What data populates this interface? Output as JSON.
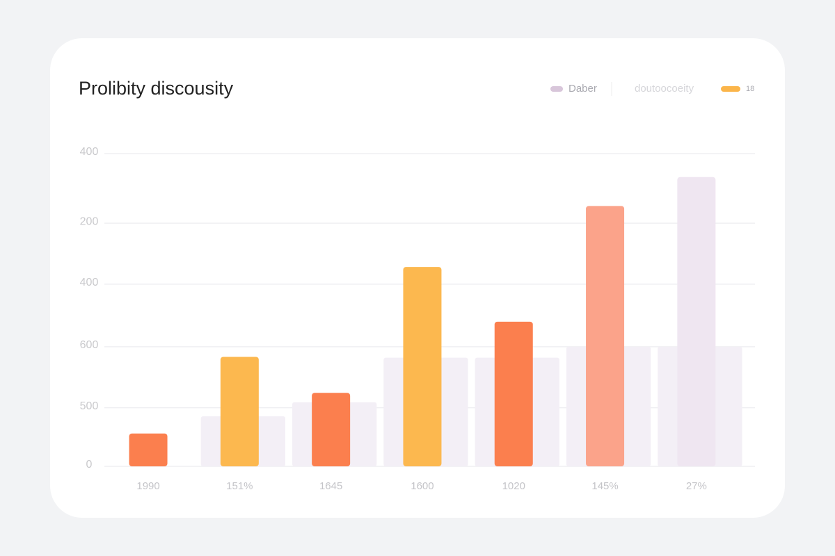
{
  "chart_data": {
    "type": "bar",
    "title": "Prolibity discousity",
    "legend": [
      {
        "label": "Daber",
        "color": "#d8c6da"
      },
      {
        "label": "doutoocoeity"
      },
      {
        "label": "18",
        "color": "#fbb54a"
      }
    ],
    "categories": [
      "1990",
      "151%",
      "1645",
      "1600",
      "1020",
      "145%",
      "27%"
    ],
    "series": [
      {
        "values": [
          null,
          64,
          82,
          139,
          139,
          153,
          153
        ],
        "color": "#f3eff6"
      },
      {
        "values": [
          42,
          140,
          94,
          255,
          185,
          333,
          370
        ],
        "colors": [
          "#fb7f4e",
          "#fcb84f",
          "#fb7f4e",
          "#fcb84f",
          "#fb7f4e",
          "#fba38a",
          "#efe6f1"
        ]
      }
    ],
    "ylim": [
      0,
      400
    ],
    "yticks": [
      0,
      {
        "value": 75,
        "label": "500"
      },
      {
        "value": 153,
        "label": "600"
      },
      {
        "value": 233,
        "label": "400"
      },
      {
        "value": 311,
        "label": "200"
      },
      400
    ],
    "grid": true
  }
}
